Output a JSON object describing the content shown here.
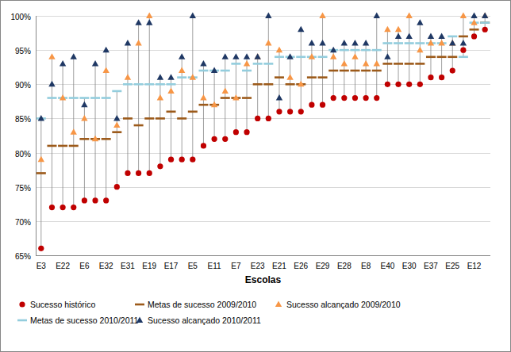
{
  "chart_data": {
    "type": "line",
    "x_label": "Escolas",
    "categories": [
      "E3",
      null,
      "E22",
      null,
      "E6",
      null,
      "E32",
      null,
      "E31",
      null,
      "E19",
      null,
      "E17",
      null,
      "E5",
      null,
      "E11",
      null,
      "E7",
      null,
      "E23",
      null,
      "E21",
      null,
      "E26",
      null,
      "E29",
      null,
      "E28",
      null,
      "E8",
      null,
      "E40",
      null,
      "E30",
      null,
      "E37",
      null,
      "E25",
      null,
      "E12",
      null
    ],
    "series": [
      {
        "name": "Sucesso histórico",
        "color": "#c00000",
        "marker": "circle",
        "line_style": "none",
        "values": [
          66,
          72,
          72,
          72,
          73,
          73,
          73,
          75,
          77,
          77,
          77,
          78,
          79,
          79,
          79,
          81,
          82,
          82,
          83,
          83,
          85,
          85,
          86,
          86,
          86,
          87,
          87,
          88,
          88,
          88,
          88,
          88,
          90,
          90,
          90,
          90,
          91,
          91,
          92,
          95,
          97,
          98
        ]
      },
      {
        "name": "Metas de sucesso 2009/2010",
        "color": "#9c5a1a",
        "marker": "dash",
        "line_style": "none",
        "values": [
          77,
          81,
          81,
          81,
          82,
          82,
          82,
          83,
          85,
          84,
          85,
          85,
          86,
          85,
          86,
          87,
          87,
          88,
          88,
          88,
          90,
          90,
          91,
          90,
          90,
          91,
          91,
          92,
          92,
          92,
          92,
          92,
          93,
          93,
          93,
          93,
          94,
          94,
          94,
          97,
          98,
          99
        ]
      },
      {
        "name": "Sucesso alcançado 2009/2010",
        "color": "#f79646",
        "marker": "triangle",
        "line_style": "none",
        "values": [
          79,
          94,
          88,
          83,
          85,
          82,
          92,
          84,
          91,
          96,
          100,
          88,
          89,
          92,
          91,
          88,
          87,
          89,
          88,
          93,
          94,
          96,
          95,
          91,
          90,
          94,
          100,
          94,
          93,
          94,
          93,
          93,
          98,
          98,
          100,
          95,
          96,
          96,
          96,
          100,
          99,
          100
        ]
      },
      {
        "name": "Metas de sucesso 2010/2011",
        "color": "#93cddd",
        "marker": "dash",
        "line_style": "none",
        "values": [
          85,
          88,
          88,
          88,
          88,
          88,
          88,
          89,
          90,
          90,
          90,
          90,
          90,
          91,
          91,
          92,
          92,
          92,
          93,
          92,
          93,
          93,
          94,
          94,
          94,
          94,
          94,
          95,
          95,
          95,
          95,
          95,
          96,
          96,
          96,
          96,
          96,
          96,
          97,
          94,
          99,
          99
        ]
      },
      {
        "name": "Sucesso alcançado 2010/2011",
        "color": "#1f3864",
        "marker": "triangle",
        "line_style": "none",
        "values": [
          85,
          90,
          93,
          94,
          87,
          93,
          95,
          85,
          96,
          99,
          99,
          91,
          91,
          94,
          100,
          93,
          92,
          94,
          94,
          94,
          94,
          100,
          88,
          94,
          98,
          96,
          96,
          95,
          96,
          96,
          96,
          100,
          94,
          97,
          97,
          99,
          97,
          97,
          96,
          96,
          100,
          100
        ]
      }
    ],
    "ylim": [
      65,
      100
    ],
    "yticks": [
      {
        "value": 65,
        "label": "65%"
      },
      {
        "value": 70,
        "label": "70%"
      },
      {
        "value": 75,
        "label": "75%"
      },
      {
        "value": 80,
        "label": "80%"
      },
      {
        "value": 85,
        "label": "85%"
      },
      {
        "value": 90,
        "label": "90%"
      },
      {
        "value": 95,
        "label": "95%"
      },
      {
        "value": 100,
        "label": "100%"
      }
    ],
    "grid": true,
    "legend": "bottom"
  }
}
